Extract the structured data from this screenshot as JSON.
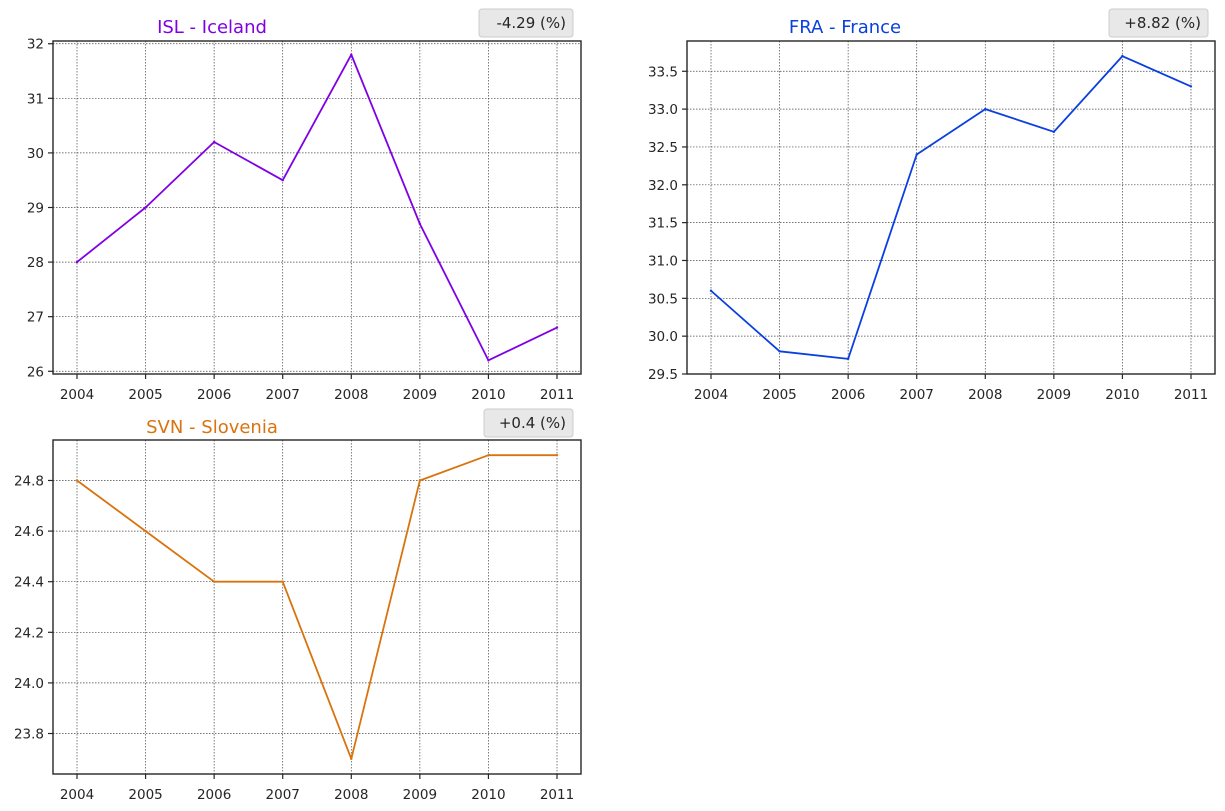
{
  "chart_data": [
    {
      "type": "line",
      "title": "ISL - Iceland",
      "badge": "-4.29 (%)",
      "color": "#8000e6",
      "x": [
        "2004",
        "2005",
        "2006",
        "2007",
        "2008",
        "2009",
        "2010",
        "2011"
      ],
      "values": [
        28.0,
        29.0,
        30.2,
        29.5,
        31.8,
        28.7,
        26.2,
        26.8
      ],
      "ylim": [
        25.95,
        32.05
      ],
      "yticks": [
        26,
        27,
        28,
        29,
        30,
        31,
        32
      ],
      "ytick_labels": [
        "26",
        "27",
        "28",
        "29",
        "30",
        "31",
        "32"
      ],
      "grid": true
    },
    {
      "type": "line",
      "title": "FRA - France",
      "badge": "+8.82 (%)",
      "color": "#0a3fe0",
      "x": [
        "2004",
        "2005",
        "2006",
        "2007",
        "2008",
        "2009",
        "2010",
        "2011"
      ],
      "values": [
        30.6,
        29.8,
        29.7,
        32.4,
        33.0,
        32.7,
        33.7,
        33.3
      ],
      "ylim": [
        29.5,
        33.9
      ],
      "yticks": [
        29.5,
        30.0,
        30.5,
        31.0,
        31.5,
        32.0,
        32.5,
        33.0,
        33.5
      ],
      "ytick_labels": [
        "29.5",
        "30.0",
        "30.5",
        "31.0",
        "31.5",
        "32.0",
        "32.5",
        "33.0",
        "33.5"
      ],
      "grid": true
    },
    {
      "type": "line",
      "title": "SVN - Slovenia",
      "badge": "+0.4 (%)",
      "color": "#d9730d",
      "x": [
        "2004",
        "2005",
        "2006",
        "2007",
        "2008",
        "2009",
        "2010",
        "2011"
      ],
      "values": [
        24.8,
        24.6,
        24.4,
        24.4,
        23.7,
        24.8,
        24.9,
        24.9
      ],
      "ylim": [
        23.64,
        24.96
      ],
      "yticks": [
        23.8,
        24.0,
        24.2,
        24.4,
        24.6,
        24.8
      ],
      "ytick_labels": [
        "23.8",
        "24.0",
        "24.2",
        "24.4",
        "24.6",
        "24.8"
      ],
      "grid": true
    }
  ]
}
